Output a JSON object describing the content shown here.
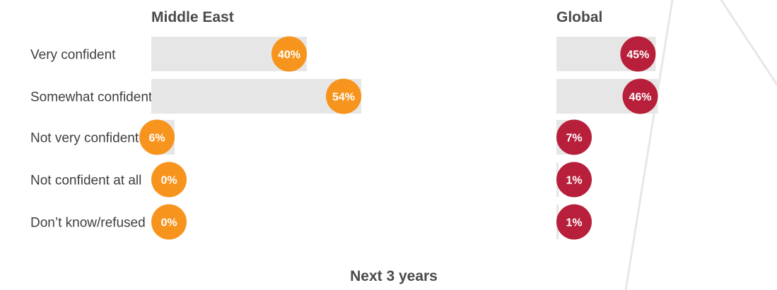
{
  "chart_data": {
    "type": "bar",
    "orientation": "horizontal",
    "categories": [
      "Very confident",
      "Somewhat confident",
      "Not very confident",
      "Not confident at all",
      "Don’t know/refused"
    ],
    "panels": [
      {
        "title": "Middle East",
        "color": "#f7941d",
        "values": [
          40,
          54,
          6,
          0,
          0
        ],
        "labels": [
          "40%",
          "54%",
          "6%",
          "0%",
          "0%"
        ]
      },
      {
        "title": "Global",
        "color": "#b81f3a",
        "values": [
          45,
          46,
          7,
          1,
          1
        ],
        "labels": [
          "45%",
          "46%",
          "7%",
          "1%",
          "1%"
        ]
      }
    ],
    "xlim": [
      0,
      100
    ],
    "grid": false,
    "legend": "none",
    "footer": "Next 3 years"
  },
  "colors": {
    "track": "#e6e6e6",
    "text": "#3f3f3f"
  }
}
